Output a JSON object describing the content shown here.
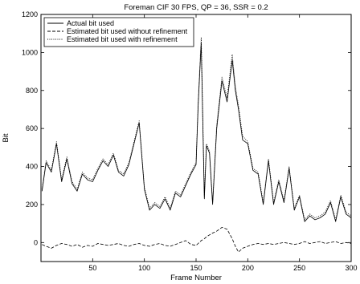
{
  "chart_data": {
    "type": "line",
    "title": "Foreman CIF 30 FPS, QP = 36, SSR = 0.2",
    "xlabel": "Frame Number",
    "ylabel": "Bit",
    "xlim": [
      0,
      300
    ],
    "ylim": [
      -100,
      1200
    ],
    "xticks": [
      50,
      100,
      150,
      200,
      250,
      300
    ],
    "yticks": [
      0,
      200,
      400,
      600,
      800,
      1000,
      1200
    ],
    "grid": false,
    "legend_position": "top-left",
    "x": [
      1,
      5,
      10,
      15,
      20,
      25,
      30,
      35,
      40,
      45,
      50,
      55,
      60,
      65,
      70,
      75,
      80,
      85,
      90,
      95,
      100,
      105,
      110,
      115,
      120,
      125,
      130,
      135,
      140,
      145,
      150,
      152,
      155,
      158,
      160,
      163,
      166,
      170,
      175,
      180,
      185,
      188,
      191,
      195,
      200,
      205,
      210,
      215,
      220,
      225,
      230,
      235,
      240,
      245,
      250,
      255,
      260,
      265,
      270,
      275,
      280,
      285,
      290,
      295,
      300
    ],
    "series": [
      {
        "name": "Actual bit used",
        "style": "solid",
        "values": [
          270,
          420,
          370,
          520,
          320,
          440,
          310,
          270,
          360,
          330,
          320,
          380,
          430,
          400,
          460,
          370,
          350,
          410,
          520,
          630,
          280,
          170,
          200,
          180,
          230,
          170,
          260,
          240,
          300,
          360,
          410,
          720,
          1050,
          230,
          510,
          470,
          200,
          600,
          850,
          740,
          960,
          800,
          700,
          540,
          520,
          380,
          360,
          200,
          430,
          200,
          320,
          210,
          390,
          170,
          240,
          110,
          140,
          120,
          130,
          150,
          210,
          110,
          240,
          150,
          130
        ]
      },
      {
        "name": "Estimated bit used without refinement",
        "style": "dashed",
        "values": [
          -10,
          -20,
          -30,
          -15,
          -5,
          -10,
          -20,
          -10,
          -25,
          -15,
          -20,
          -5,
          -10,
          -15,
          -10,
          -5,
          -15,
          -20,
          -10,
          -5,
          -15,
          -20,
          -10,
          -5,
          -15,
          -20,
          -10,
          0,
          10,
          -10,
          -15,
          -5,
          10,
          20,
          30,
          40,
          50,
          60,
          80,
          70,
          20,
          -20,
          -50,
          -30,
          -20,
          -10,
          -5,
          -10,
          -5,
          -10,
          -5,
          0,
          -5,
          -10,
          -5,
          5,
          -5,
          0,
          5,
          -5,
          0,
          5,
          -5,
          0,
          -5
        ]
      },
      {
        "name": "Estimated bit used with refinement",
        "style": "dotted",
        "values": [
          280,
          430,
          380,
          530,
          330,
          450,
          320,
          280,
          370,
          340,
          330,
          390,
          440,
          410,
          470,
          380,
          360,
          420,
          530,
          640,
          290,
          180,
          210,
          190,
          240,
          180,
          270,
          250,
          310,
          370,
          420,
          740,
          1080,
          240,
          520,
          480,
          210,
          620,
          870,
          760,
          990,
          820,
          720,
          560,
          530,
          390,
          370,
          210,
          440,
          210,
          330,
          220,
          400,
          180,
          250,
          120,
          150,
          130,
          140,
          160,
          220,
          120,
          250,
          160,
          140
        ]
      }
    ]
  }
}
